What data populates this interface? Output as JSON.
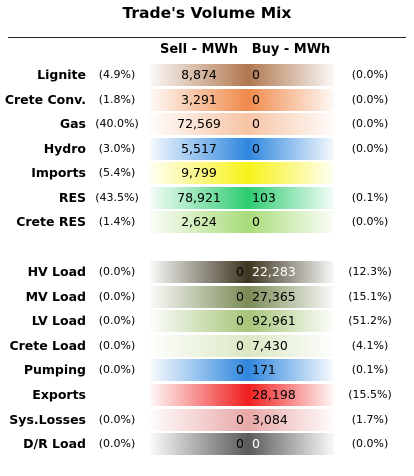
{
  "title": "Trade's Volume Mix",
  "headers": {
    "sell": "Sell - MWh",
    "buy": "Buy - MWh"
  },
  "generation": [
    {
      "name": "Lignite",
      "sell_pct": "(4.9%)",
      "sell": "8,874",
      "buy": "0",
      "buy_pct": "(0.0%)",
      "color": "#b07850"
    },
    {
      "name": "Crete Conv.",
      "sell_pct": "(1.8%)",
      "sell": "3,291",
      "buy": "0",
      "buy_pct": "(0.0%)",
      "color": "#f08a4b"
    },
    {
      "name": "Gas",
      "sell_pct": "(40.0%)",
      "sell": "72,569",
      "buy": "0",
      "buy_pct": "(0.0%)",
      "color": "#f7c4a5"
    },
    {
      "name": "Hydro",
      "sell_pct": "(3.0%)",
      "sell": "5,517",
      "buy": "0",
      "buy_pct": "(0.0%)",
      "color": "#2e86de"
    },
    {
      "name": "Imports",
      "sell_pct": "(5.4%)",
      "sell": "9,799",
      "buy": "",
      "buy_pct": "",
      "color": "#f7f21a"
    },
    {
      "name": "RES",
      "sell_pct": "(43.5%)",
      "sell": "78,921",
      "buy": "103",
      "buy_pct": "(0.1%)",
      "color": "#2ecc71"
    },
    {
      "name": "Crete RES",
      "sell_pct": "(1.4%)",
      "sell": "2,624",
      "buy": "0",
      "buy_pct": "(0.0%)",
      "color": "#a9dc7a"
    }
  ],
  "loads": [
    {
      "name": "HV Load",
      "sell_pct": "(0.0%)",
      "sell": "0",
      "buy": "22,283",
      "buy_pct": "(12.3%)",
      "color": "#3d3520"
    },
    {
      "name": "MV Load",
      "sell_pct": "(0.0%)",
      "sell": "0",
      "buy": "27,365",
      "buy_pct": "(15.1%)",
      "color": "#7a8a55"
    },
    {
      "name": "LV Load",
      "sell_pct": "(0.0%)",
      "sell": "0",
      "buy": "92,961",
      "buy_pct": "(51.2%)",
      "color": "#a6c57a"
    },
    {
      "name": "Crete Load",
      "sell_pct": "(0.0%)",
      "sell": "0",
      "buy": "7,430",
      "buy_pct": "(4.1%)",
      "color": "#dbe8c4"
    },
    {
      "name": "Pumping",
      "sell_pct": "(0.0%)",
      "sell": "0",
      "buy": "171",
      "buy_pct": "(0.1%)",
      "color": "#2e86de"
    },
    {
      "name": "Exports",
      "sell_pct": "",
      "sell": "",
      "buy": "28,198",
      "buy_pct": "(15.5%)",
      "color": "#f01e1e"
    },
    {
      "name": "Sys.Losses",
      "sell_pct": "(0.0%)",
      "sell": "0",
      "buy": "3,084",
      "buy_pct": "(1.7%)",
      "color": "#e8a8a8"
    },
    {
      "name": "D/R Load",
      "sell_pct": "(0.0%)",
      "sell": "0",
      "buy": "0",
      "buy_pct": "(0.0%)",
      "color": "#5a5a5a"
    }
  ]
}
